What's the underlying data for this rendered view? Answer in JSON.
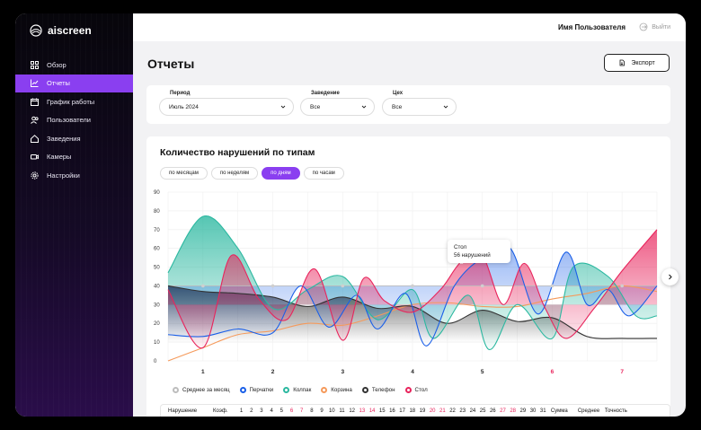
{
  "brand": {
    "name": "aiscreen"
  },
  "sidebar": {
    "items": [
      {
        "label": "Обзор",
        "icon": "grid-icon",
        "active": false
      },
      {
        "label": "Отчеты",
        "icon": "chart-line-icon",
        "active": true
      },
      {
        "label": "График работы",
        "icon": "calendar-icon",
        "active": false
      },
      {
        "label": "Пользователи",
        "icon": "users-icon",
        "active": false
      },
      {
        "label": "Заведения",
        "icon": "home-icon",
        "active": false
      },
      {
        "label": "Камеры",
        "icon": "camera-icon",
        "active": false
      },
      {
        "label": "Настройки",
        "icon": "gear-icon",
        "active": false
      }
    ]
  },
  "header": {
    "username": "Имя Пользователя",
    "logout_label": "Выйти"
  },
  "page": {
    "title": "Отчеты",
    "export_label": "Экспорт"
  },
  "filters": [
    {
      "label": "Период",
      "value": "Июль 2024"
    },
    {
      "label": "Заведение",
      "value": "Все"
    },
    {
      "label": "Цех",
      "value": "Все"
    }
  ],
  "report": {
    "title": "Количество нарушений по типам",
    "tabs": [
      {
        "label": "по месяцам",
        "active": false
      },
      {
        "label": "по неделям",
        "active": false
      },
      {
        "label": "по дням",
        "active": true
      },
      {
        "label": "по часам",
        "active": false
      }
    ],
    "tooltip": {
      "series": "Стол",
      "value": "56 нарушений"
    }
  },
  "colors": {
    "accent": "#8a3ff0",
    "avg": "#bdbdbd",
    "gloves": "#1a5fe8",
    "cap": "#2bb8a0",
    "basket": "#f59a5b",
    "phone": "#333333",
    "table": "#e8245c",
    "weekend": "#e8245c"
  },
  "chart_data": {
    "type": "line",
    "x": [
      "1",
      "2",
      "3",
      "4",
      "5",
      "6",
      "7"
    ],
    "weekend_days": [
      "6",
      "7"
    ],
    "ylim": [
      0,
      90
    ],
    "yticks": [
      "0",
      "10",
      "20",
      "30",
      "40",
      "50",
      "60",
      "70",
      "80",
      "90"
    ],
    "grid": true,
    "legend_placement": "bottom",
    "series": [
      {
        "name": "Среднее за месяц",
        "key": "avg",
        "points": [
          [
            0.5,
            40
          ],
          [
            1,
            40
          ],
          [
            1.5,
            40
          ],
          [
            2,
            40
          ],
          [
            2.5,
            40
          ],
          [
            3,
            40
          ],
          [
            3.5,
            40
          ],
          [
            4,
            40
          ],
          [
            4.5,
            40
          ],
          [
            5,
            40
          ],
          [
            5.5,
            40
          ],
          [
            6,
            40
          ],
          [
            6.5,
            40
          ],
          [
            7,
            40
          ],
          [
            7.5,
            40
          ]
        ]
      },
      {
        "name": "Перчатки",
        "key": "gloves",
        "points": [
          [
            0.5,
            14
          ],
          [
            1,
            13
          ],
          [
            1.5,
            17
          ],
          [
            2,
            15
          ],
          [
            2.4,
            40
          ],
          [
            2.8,
            18
          ],
          [
            3.2,
            35
          ],
          [
            3.5,
            17
          ],
          [
            3.9,
            36
          ],
          [
            4.2,
            8
          ],
          [
            4.6,
            40
          ],
          [
            5,
            55
          ],
          [
            5.4,
            60
          ],
          [
            5.8,
            25
          ],
          [
            6.2,
            58
          ],
          [
            6.5,
            30
          ],
          [
            6.8,
            38
          ],
          [
            7.1,
            24
          ],
          [
            7.5,
            40
          ]
        ]
      },
      {
        "name": "Колпак",
        "key": "cap",
        "points": [
          [
            0.5,
            47
          ],
          [
            1,
            77
          ],
          [
            1.5,
            60
          ],
          [
            2,
            28
          ],
          [
            2.5,
            38
          ],
          [
            3,
            45
          ],
          [
            3.5,
            22
          ],
          [
            4,
            38
          ],
          [
            4.3,
            12
          ],
          [
            4.8,
            35
          ],
          [
            5.1,
            6
          ],
          [
            5.5,
            30
          ],
          [
            6,
            12
          ],
          [
            6.3,
            50
          ],
          [
            6.8,
            45
          ],
          [
            7.2,
            24
          ],
          [
            7.5,
            24
          ]
        ]
      },
      {
        "name": "Корзина",
        "key": "basket",
        "points": [
          [
            0.5,
            0
          ],
          [
            1,
            7
          ],
          [
            1.5,
            14
          ],
          [
            2,
            16
          ],
          [
            2.5,
            20
          ],
          [
            3,
            19
          ],
          [
            3.5,
            24
          ],
          [
            4,
            30
          ],
          [
            4.5,
            31
          ],
          [
            5,
            29
          ],
          [
            5.5,
            29
          ],
          [
            6,
            33
          ],
          [
            6.5,
            36
          ],
          [
            7,
            40
          ],
          [
            7.5,
            37
          ]
        ]
      },
      {
        "name": "Телефон",
        "key": "phone",
        "points": [
          [
            0.5,
            40
          ],
          [
            1,
            37
          ],
          [
            1.5,
            36
          ],
          [
            2,
            34
          ],
          [
            2.5,
            29
          ],
          [
            3,
            34
          ],
          [
            3.5,
            28
          ],
          [
            4,
            29
          ],
          [
            4.5,
            20
          ],
          [
            5,
            27
          ],
          [
            5.5,
            21
          ],
          [
            6,
            23
          ],
          [
            6.5,
            13
          ],
          [
            7,
            12
          ],
          [
            7.5,
            12
          ]
        ]
      },
      {
        "name": "Стол",
        "key": "table",
        "points": [
          [
            0.5,
            38
          ],
          [
            1,
            7
          ],
          [
            1.4,
            56
          ],
          [
            1.8,
            33
          ],
          [
            2.2,
            22
          ],
          [
            2.6,
            49
          ],
          [
            3,
            11
          ],
          [
            3.3,
            44
          ],
          [
            3.6,
            32
          ],
          [
            4,
            26
          ],
          [
            4.4,
            38
          ],
          [
            4.7,
            53
          ],
          [
            5,
            56
          ],
          [
            5.3,
            30
          ],
          [
            5.6,
            52
          ],
          [
            5.9,
            28
          ],
          [
            6.2,
            12
          ],
          [
            6.6,
            28
          ],
          [
            7,
            48
          ],
          [
            7.5,
            70
          ]
        ]
      }
    ]
  },
  "table": {
    "headers": [
      "Нарушение",
      "Коэф.",
      "1",
      "2",
      "3",
      "4",
      "5",
      "6",
      "7",
      "8",
      "9",
      "10",
      "11",
      "12",
      "13",
      "14",
      "15",
      "16",
      "17",
      "18",
      "19",
      "20",
      "21",
      "22",
      "23",
      "24",
      "25",
      "26",
      "27",
      "28",
      "29",
      "30",
      "31",
      "Сумма",
      "Среднее",
      "Точность"
    ],
    "red_headers": [
      "6",
      "7",
      "13",
      "14",
      "20",
      "21",
      "27",
      "28"
    ]
  }
}
